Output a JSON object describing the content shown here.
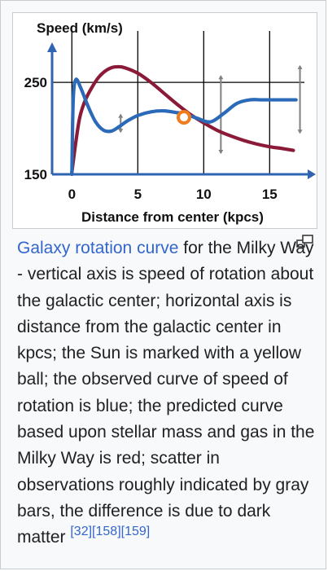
{
  "caption": {
    "link_text": "Galaxy rotation curve",
    "text": " for the Milky Way - vertical axis is speed of rotation about the galactic center; horizontal axis is distance from the galactic center in kpcs; the Sun is marked with a yellow ball; the observed curve of speed of rotation is blue; the predicted curve based upon stellar mass and gas in the Milky Way is red; scatter in observations roughly indicated by gray bars, the difference is due to dark matter",
    "refs": [
      "[32]",
      "[158]",
      "[159]"
    ]
  },
  "icons": {
    "magnify": "enlarge-icon"
  },
  "colors": {
    "observed": "#2a6ab8",
    "predicted": "#8b1a38",
    "sun_fill": "#ffffff",
    "sun_stroke": "#f07b1e",
    "axis": "#2e64b0",
    "grid": "#000000",
    "error_bars": "#808080",
    "link": "#3366cc"
  },
  "chart_data": {
    "type": "line",
    "title": "Speed (km/s)",
    "xlabel": "Distance from center (kpcs)",
    "ylabel": "Speed (km/s)",
    "xlim": [
      -1.5,
      18.5
    ],
    "ylim": [
      150,
      290
    ],
    "x_ticks": [
      0,
      5,
      10,
      15
    ],
    "y_ticks": [
      150,
      250
    ],
    "grid": true,
    "series": [
      {
        "key": "observed",
        "x": [
          0,
          0.1,
          0.3,
          0.7,
          1.2,
          1.8,
          2.4,
          3.0,
          3.6,
          4.2,
          5.0,
          6.0,
          7.0,
          8.0,
          8.5,
          9.5,
          10.5,
          11.5,
          12.5,
          13.5,
          14.5,
          15.5,
          17.0
        ],
        "y": [
          150,
          230,
          253,
          243,
          225,
          207,
          198,
          197,
          202,
          208,
          214,
          218,
          219,
          217,
          216,
          211,
          207,
          216,
          227,
          231,
          231,
          231,
          231
        ]
      },
      {
        "key": "predicted",
        "x": [
          0,
          0.3,
          0.6,
          1.0,
          1.5,
          2.0,
          2.5,
          3.0,
          3.5,
          4.0,
          5.0,
          6.0,
          7.0,
          8.0,
          9.0,
          10.0,
          11.0,
          12.0,
          13.0,
          14.0,
          15.0,
          16.0,
          16.8
        ],
        "y": [
          152,
          185,
          212,
          230,
          244,
          255,
          262,
          266,
          267,
          266,
          260,
          250,
          238,
          226,
          215,
          206,
          198,
          192,
          187,
          183,
          180,
          178,
          176
        ]
      }
    ],
    "sun": {
      "x": 8.5,
      "y": 212
    },
    "error_bars": [
      {
        "x": 3.7,
        "low": 196,
        "high": 215
      },
      {
        "x": 11.3,
        "low": 173,
        "high": 257
      },
      {
        "x": 17.3,
        "low": 195,
        "high": 268
      }
    ]
  }
}
